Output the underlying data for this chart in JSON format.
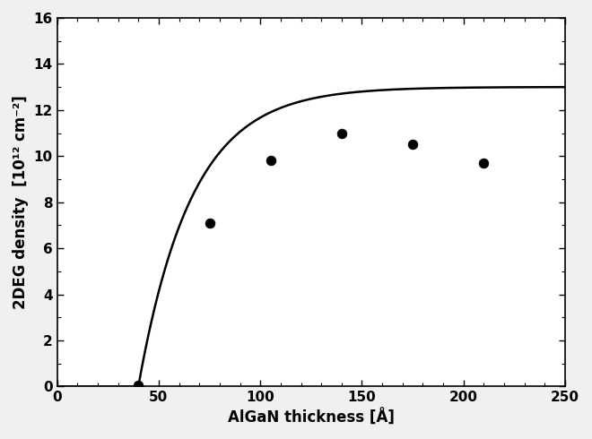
{
  "scatter_x": [
    40,
    75,
    105,
    140,
    175,
    210
  ],
  "scatter_y": [
    0.05,
    7.1,
    9.8,
    11.0,
    10.5,
    9.7
  ],
  "xlim": [
    0,
    250
  ],
  "ylim": [
    0,
    16
  ],
  "xticks": [
    0,
    50,
    100,
    150,
    200,
    250
  ],
  "yticks": [
    0,
    2,
    4,
    6,
    8,
    10,
    12,
    14,
    16
  ],
  "xlabel": "AlGaN thickness [Å]",
  "ylabel": "2DEG density  [10¹² cm⁻²]",
  "curve_t_cr": 40.0,
  "curve_saturation": 13.0,
  "curve_rate": 0.038,
  "line_color": "#000000",
  "scatter_color": "#000000",
  "scatter_size": 60,
  "background_color": "#f0f0f0",
  "label_fontsize": 12,
  "tick_fontsize": 11
}
